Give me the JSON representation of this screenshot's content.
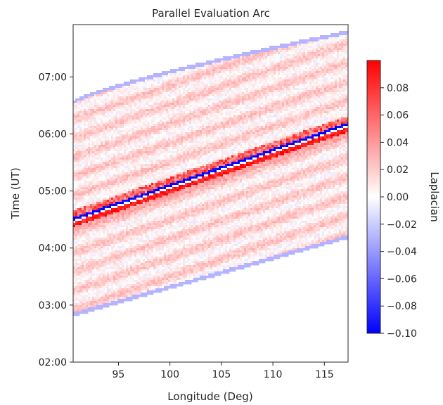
{
  "chart_data": {
    "type": "heatmap",
    "title": "Parallel Evaluation Arc",
    "xlabel": "Longitude (Deg)",
    "ylabel": "Time (UT)",
    "xlim": [
      90.6,
      117.3
    ],
    "ylim": [
      "02:00",
      "07:55"
    ],
    "x_ticks": [
      95,
      100,
      105,
      110,
      115
    ],
    "x_tick_labels": [
      "95",
      "100",
      "105",
      "110",
      "115"
    ],
    "y_ticks": [
      "02:00",
      "03:00",
      "04:00",
      "05:00",
      "06:00",
      "07:00"
    ],
    "y_tick_labels": [
      "02:00",
      "03:00",
      "04:00",
      "05:00",
      "06:00",
      "07:00"
    ],
    "grid": false,
    "colormap": "bwr",
    "colors": {
      "low": "#0000ff",
      "mid": "#ffffff",
      "high": "#ff0000"
    },
    "colorbar": {
      "label": "Laplacian",
      "range": [
        -0.1,
        0.1
      ],
      "ticks": [
        0.08,
        0.06,
        0.04,
        0.02,
        0.0,
        -0.02,
        -0.04,
        -0.06,
        -0.08,
        -0.1
      ],
      "tick_labels": [
        "0.08",
        "0.06",
        "0.04",
        "0.02",
        "0.00",
        "−0.02",
        "−0.04",
        "−0.06",
        "−0.08",
        "−0.10"
      ]
    },
    "band": {
      "description": "diagonal strong positive/negative Laplacian band",
      "lon": [
        90.6,
        117.3
      ],
      "time_center": [
        "04:30",
        "06:10"
      ],
      "value_range": [
        -0.1,
        0.1
      ]
    },
    "field_extent": {
      "lon": [
        90.6,
        117.3
      ],
      "time_top": [
        "06:33",
        "07:47"
      ],
      "time_bottom": [
        "02:50",
        "04:12"
      ]
    }
  }
}
